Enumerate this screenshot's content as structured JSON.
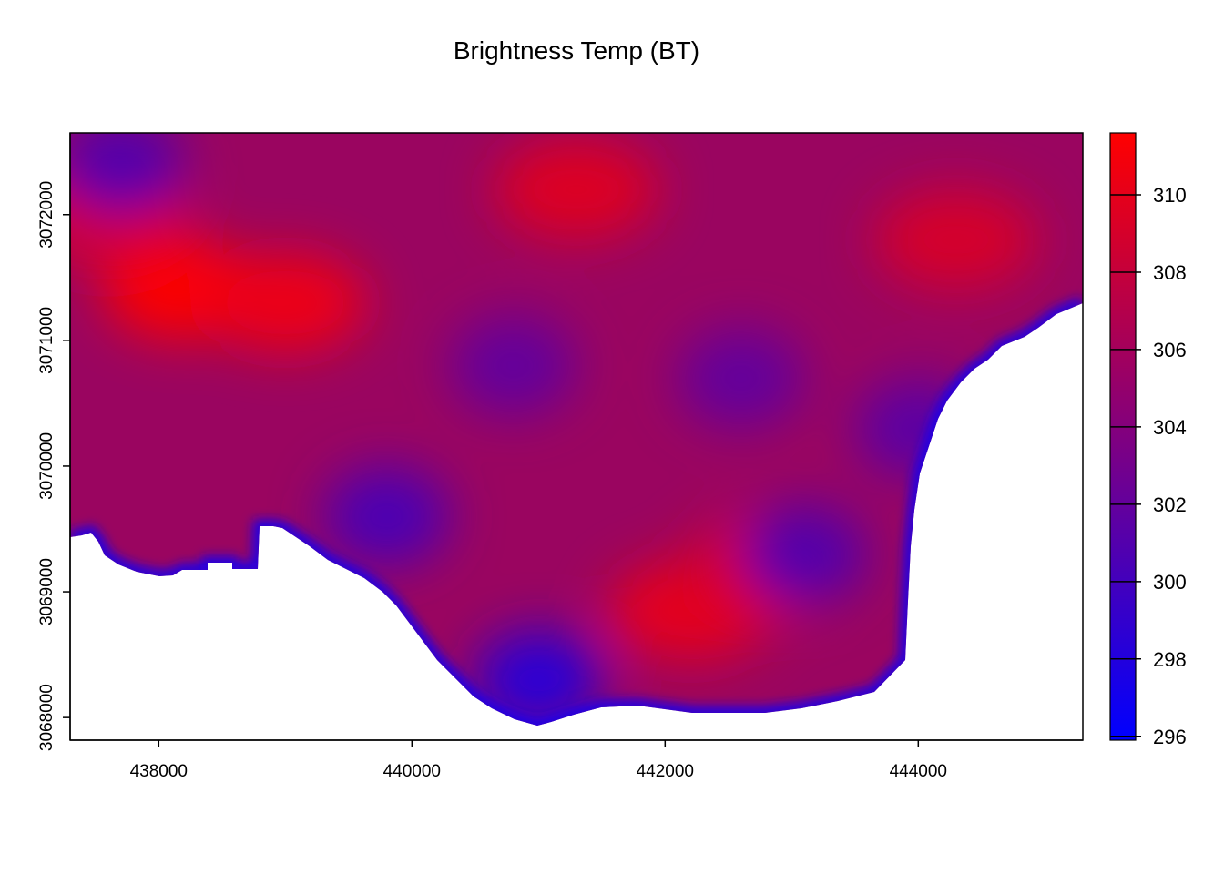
{
  "chart_data": {
    "type": "heatmap",
    "title": "Brightness Temp (BT)",
    "xlim": [
      437300,
      445300
    ],
    "ylim": [
      3067820,
      3072650
    ],
    "x_ticks": [
      438000,
      440000,
      442000,
      444000
    ],
    "y_ticks": [
      3068000,
      3069000,
      3070000,
      3071000,
      3072000
    ],
    "colorbar": {
      "range": [
        295.9,
        311.6
      ],
      "ticks": [
        296,
        298,
        300,
        302,
        304,
        306,
        308,
        310
      ],
      "color_low": "#0000ff",
      "color_high": "#ff0000"
    },
    "grid": false,
    "hot_spots": [
      {
        "x": 438200,
        "y": 3071400,
        "value": 311.5
      },
      {
        "x": 439000,
        "y": 3071300,
        "value": 310.5
      },
      {
        "x": 442200,
        "y": 3068850,
        "value": 310.0
      },
      {
        "x": 441300,
        "y": 3072200,
        "value": 309.5
      },
      {
        "x": 444300,
        "y": 3071800,
        "value": 309.0
      },
      {
        "x": 437600,
        "y": 3072000,
        "value": 309.0
      },
      {
        "x": 442800,
        "y": 3069200,
        "value": 309.0
      }
    ],
    "cool_spots": [
      {
        "x": 441000,
        "y": 3068300,
        "value": 298.5
      },
      {
        "x": 443100,
        "y": 3069300,
        "value": 301.0
      },
      {
        "x": 439800,
        "y": 3069600,
        "value": 300.5
      },
      {
        "x": 437700,
        "y": 3072400,
        "value": 301.0
      },
      {
        "x": 442600,
        "y": 3070700,
        "value": 302.0
      },
      {
        "x": 444000,
        "y": 3070300,
        "value": 301.5
      },
      {
        "x": 440800,
        "y": 3070800,
        "value": 302.0
      }
    ]
  }
}
